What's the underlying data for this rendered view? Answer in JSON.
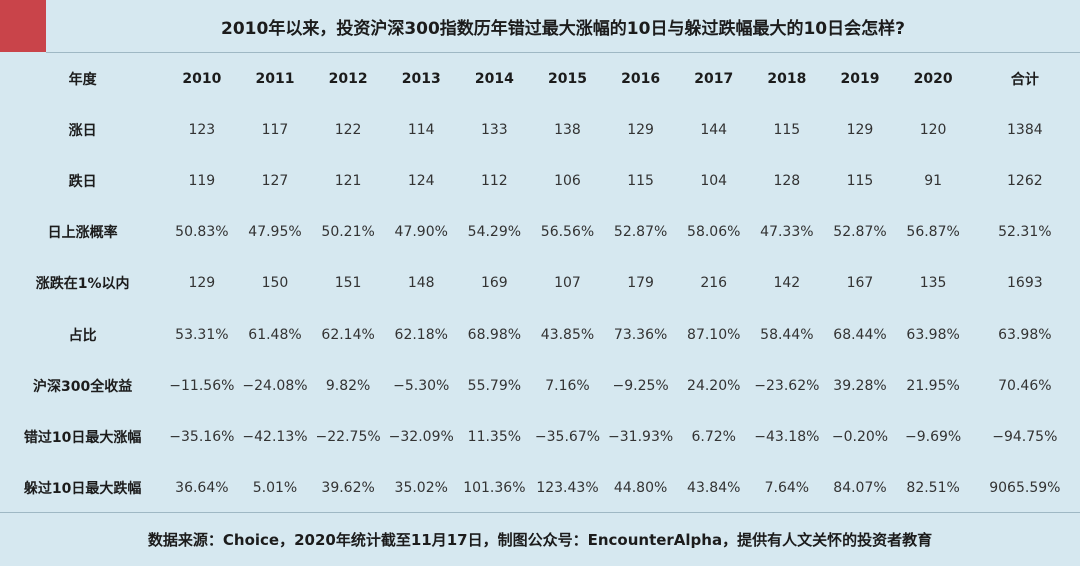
{
  "title": "2010年以来，投资沪深300指数历年错过最大涨幅的10日与躲过跌幅最大的10日会怎样?",
  "table": {
    "header": [
      "年度",
      "2010",
      "2011",
      "2012",
      "2013",
      "2014",
      "2015",
      "2016",
      "2017",
      "2018",
      "2019",
      "2020",
      "合计"
    ],
    "rows": [
      {
        "label": "涨日",
        "values": [
          "123",
          "117",
          "122",
          "114",
          "133",
          "138",
          "129",
          "144",
          "115",
          "129",
          "120",
          "1384"
        ]
      },
      {
        "label": "跌日",
        "values": [
          "119",
          "127",
          "121",
          "124",
          "112",
          "106",
          "115",
          "104",
          "128",
          "115",
          "91",
          "1262"
        ]
      },
      {
        "label": "日上涨概率",
        "values": [
          "50.83%",
          "47.95%",
          "50.21%",
          "47.90%",
          "54.29%",
          "56.56%",
          "52.87%",
          "58.06%",
          "47.33%",
          "52.87%",
          "56.87%",
          "52.31%"
        ]
      },
      {
        "label": "涨跌在1%以内",
        "values": [
          "129",
          "150",
          "151",
          "148",
          "169",
          "107",
          "179",
          "216",
          "142",
          "167",
          "135",
          "1693"
        ]
      },
      {
        "label": "占比",
        "values": [
          "53.31%",
          "61.48%",
          "62.14%",
          "62.18%",
          "68.98%",
          "43.85%",
          "73.36%",
          "87.10%",
          "58.44%",
          "68.44%",
          "63.98%",
          "63.98%"
        ]
      },
      {
        "label": "沪深300全收益",
        "values": [
          "−11.56%",
          "−24.08%",
          "9.82%",
          "−5.30%",
          "55.79%",
          "7.16%",
          "−9.25%",
          "24.20%",
          "−23.62%",
          "39.28%",
          "21.95%",
          "70.46%"
        ]
      },
      {
        "label": "错过10日最大涨幅",
        "values": [
          "−35.16%",
          "−42.13%",
          "−22.75%",
          "−32.09%",
          "11.35%",
          "−35.67%",
          "−31.93%",
          "6.72%",
          "−43.18%",
          "−0.20%",
          "−9.69%",
          "−94.75%"
        ]
      },
      {
        "label": "躲过10日最大跌幅",
        "values": [
          "36.64%",
          "5.01%",
          "39.62%",
          "35.02%",
          "101.36%",
          "123.43%",
          "44.80%",
          "43.84%",
          "7.64%",
          "84.07%",
          "82.51%",
          "9065.59%"
        ]
      }
    ]
  },
  "footer": "数据来源：Choice，2020年统计截至11月17日，制图公众号：EncounterAlpha，提供有人文关怀的投资者教育",
  "colors": {
    "background": "#d6e8f0",
    "accent": "#c9444a"
  }
}
